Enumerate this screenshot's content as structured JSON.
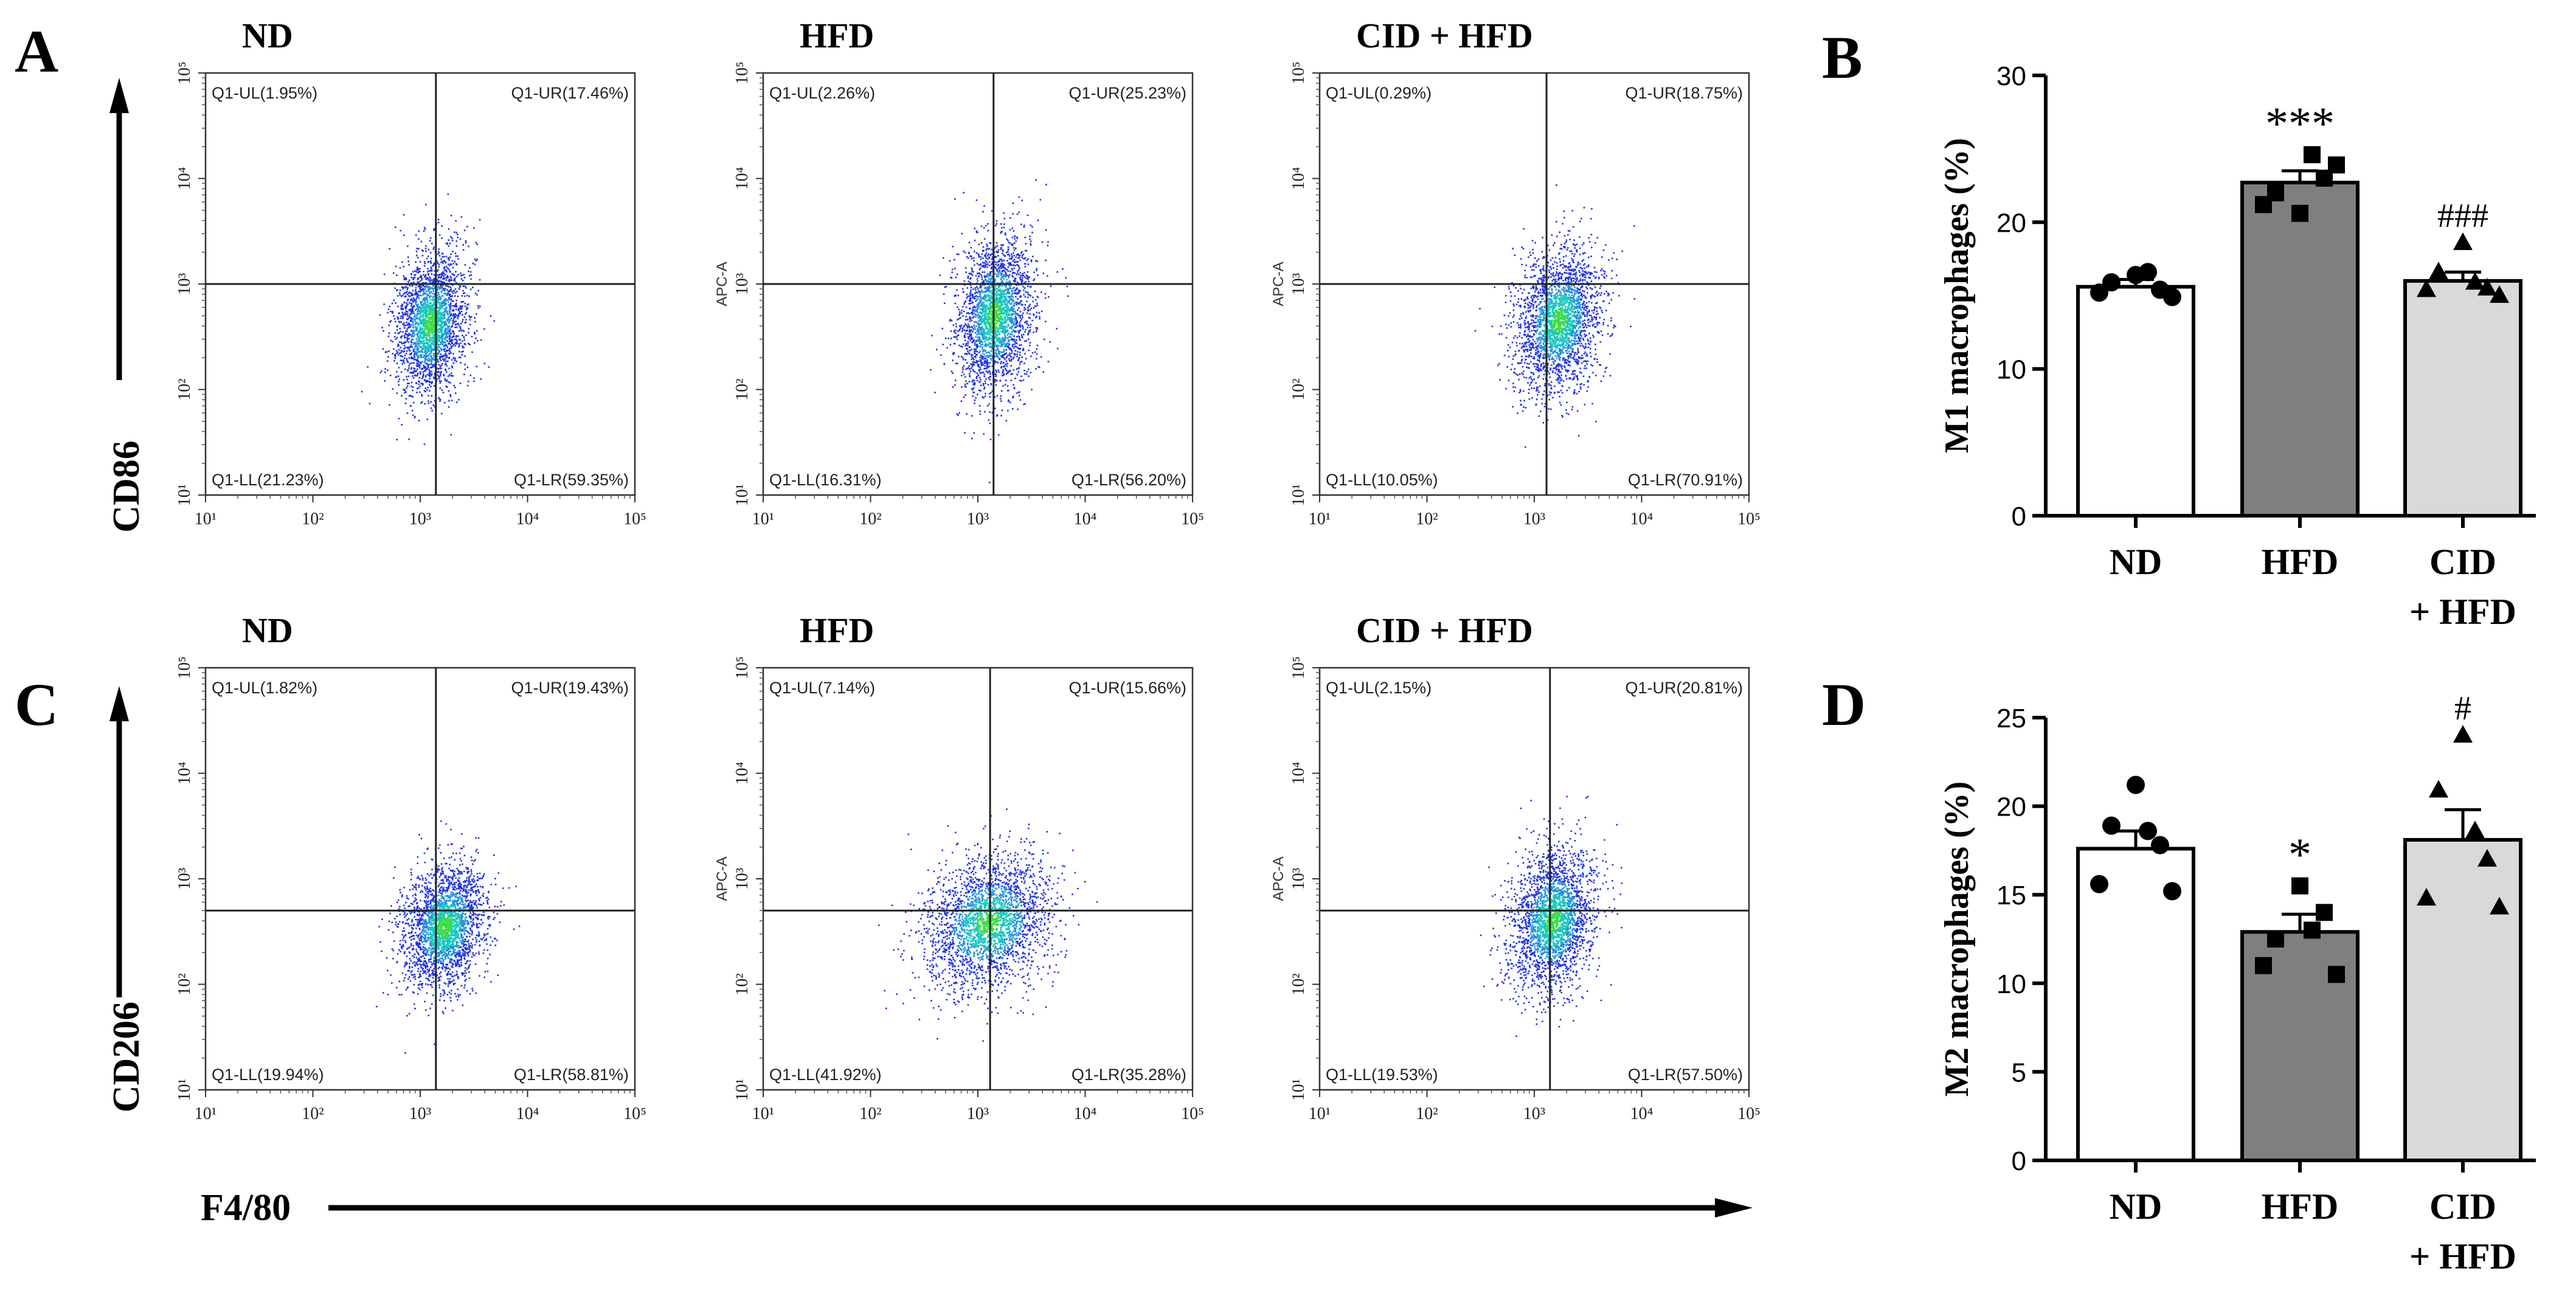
{
  "panel_letters": {
    "A": "A",
    "B": "B",
    "C": "C",
    "D": "D"
  },
  "axis_titles": {
    "cd86": "CD86",
    "cd206": "CD206",
    "f480": "F4/80"
  },
  "inner_axis_label": "APC-A",
  "colors": {
    "dot_blue": "#1f32e6",
    "dot_dense": "#18c8c0",
    "dot_core": "#3edc4a",
    "quad_line": "#222222",
    "hfd_bar": "#7f7f7f",
    "cid_bar": "#d9d9d9",
    "nd_bar": "#ffffff"
  },
  "flow_ticks": [
    "10¹",
    "10²",
    "10³",
    "10⁴",
    "10⁵"
  ],
  "chart_data": [
    {
      "type": "scatter",
      "panel": "A",
      "title": "ND",
      "marker": "CD86",
      "quadrants": {
        "UL": "Q1-UL(1.95%)",
        "UR": "Q1-UR(17.46%)",
        "LL": "Q1-LL(21.23%)",
        "LR": "Q1-LR(59.35%)"
      },
      "gate": {
        "x": 1400,
        "y": 1000
      },
      "center": {
        "x": 1250,
        "y": 420
      },
      "spread": {
        "x": 0.17,
        "y": 0.34
      },
      "xlim": [
        10,
        100000
      ],
      "ylim": [
        10,
        100000
      ],
      "scale": "log"
    },
    {
      "type": "scatter",
      "panel": "A",
      "title": "HFD",
      "marker": "CD86",
      "quadrants": {
        "UL": "Q1-UL(2.26%)",
        "UR": "Q1-UR(25.23%)",
        "LL": "Q1-LL(16.31%)",
        "LR": "Q1-LR(56.20%)"
      },
      "gate": {
        "x": 1400,
        "y": 1000
      },
      "center": {
        "x": 1450,
        "y": 500
      },
      "spread": {
        "x": 0.18,
        "y": 0.38
      },
      "xlim": [
        10,
        100000
      ],
      "ylim": [
        10,
        100000
      ],
      "scale": "log"
    },
    {
      "type": "scatter",
      "panel": "A",
      "title": "CID + HFD",
      "marker": "CD86",
      "quadrants": {
        "UL": "Q1-UL(0.29%)",
        "UR": "Q1-UR(18.75%)",
        "LL": "Q1-LL(10.05%)",
        "LR": "Q1-LR(70.91%)"
      },
      "gate": {
        "x": 1300,
        "y": 1000
      },
      "center": {
        "x": 1700,
        "y": 450
      },
      "spread": {
        "x": 0.2,
        "y": 0.34
      },
      "xlim": [
        10,
        100000
      ],
      "ylim": [
        10,
        100000
      ],
      "scale": "log"
    },
    {
      "type": "scatter",
      "panel": "C",
      "title": "ND",
      "marker": "CD206",
      "quadrants": {
        "UL": "Q1-UL(1.82%)",
        "UR": "Q1-UR(19.43%)",
        "LL": "Q1-LL(19.94%)",
        "LR": "Q1-LR(58.81%)"
      },
      "gate": {
        "x": 1400,
        "y": 500
      },
      "center": {
        "x": 1700,
        "y": 350
      },
      "spread": {
        "x": 0.2,
        "y": 0.3
      },
      "xlim": [
        10,
        100000
      ],
      "ylim": [
        10,
        100000
      ],
      "scale": "log"
    },
    {
      "type": "scatter",
      "panel": "C",
      "title": "HFD",
      "marker": "CD206",
      "quadrants": {
        "UL": "Q1-UL(7.14%)",
        "UR": "Q1-UR(15.66%)",
        "LL": "Q1-LL(41.92%)",
        "LR": "Q1-LR(35.28%)"
      },
      "gate": {
        "x": 1300,
        "y": 500
      },
      "center": {
        "x": 1250,
        "y": 380
      },
      "spread": {
        "x": 0.3,
        "y": 0.32
      },
      "xlim": [
        10,
        100000
      ],
      "ylim": [
        10,
        100000
      ],
      "scale": "log"
    },
    {
      "type": "scatter",
      "panel": "C",
      "title": "CID + HFD",
      "marker": "CD206",
      "quadrants": {
        "UL": "Q1-UL(2.15%)",
        "UR": "Q1-UR(20.81%)",
        "LL": "Q1-LL(19.53%)",
        "LR": "Q1-LR(57.50%)"
      },
      "gate": {
        "x": 1400,
        "y": 500
      },
      "center": {
        "x": 1500,
        "y": 400
      },
      "spread": {
        "x": 0.2,
        "y": 0.34
      },
      "xlim": [
        10,
        100000
      ],
      "ylim": [
        10,
        100000
      ],
      "scale": "log"
    },
    {
      "type": "bar",
      "panel": "B",
      "title": "",
      "ylabel": "M1 macrophages (%)",
      "xlabel": "",
      "categories": [
        "ND",
        "HFD",
        "CID + HFD"
      ],
      "tick_labels": [
        [
          "ND"
        ],
        [
          "HFD"
        ],
        [
          "CID",
          "+ HFD"
        ]
      ],
      "values": [
        15.6,
        22.7,
        16.0
      ],
      "sem": [
        0.5,
        0.8,
        0.6
      ],
      "points": [
        [
          16.4,
          15.9,
          15.4,
          15.2,
          14.9,
          16.6
        ],
        [
          20.6,
          22.0,
          23.0,
          21.2,
          23.9,
          24.6
        ],
        [
          18.6,
          16.6,
          15.5,
          15.4,
          15.0,
          15.9
        ]
      ],
      "markers": [
        "circle",
        "square",
        "triangle"
      ],
      "significance": [
        "",
        "***",
        "###"
      ],
      "yticks": [
        "0",
        "10",
        "20",
        "30"
      ],
      "ylim": [
        0,
        30
      ]
    },
    {
      "type": "bar",
      "panel": "D",
      "title": "",
      "ylabel": "M2 macrophages (%)",
      "xlabel": "",
      "categories": [
        "ND",
        "HFD",
        "CID + HFD"
      ],
      "tick_labels": [
        [
          "ND"
        ],
        [
          "HFD"
        ],
        [
          "CID",
          "+ HFD"
        ]
      ],
      "values": [
        17.6,
        12.9,
        18.1
      ],
      "sem": [
        1.0,
        1.0,
        1.7
      ],
      "points": [
        [
          21.2,
          18.9,
          17.8,
          15.6,
          15.2,
          18.6
        ],
        [
          15.5,
          12.5,
          14.0,
          11.0,
          10.5,
          13.0
        ],
        [
          24.0,
          20.9,
          17.0,
          14.8,
          14.3,
          18.6
        ]
      ],
      "markers": [
        "circle",
        "square",
        "triangle"
      ],
      "significance": [
        "",
        "*",
        "#"
      ],
      "yticks": [
        "0",
        "5",
        "10",
        "15",
        "20",
        "25"
      ],
      "ylim": [
        0,
        25
      ]
    }
  ]
}
